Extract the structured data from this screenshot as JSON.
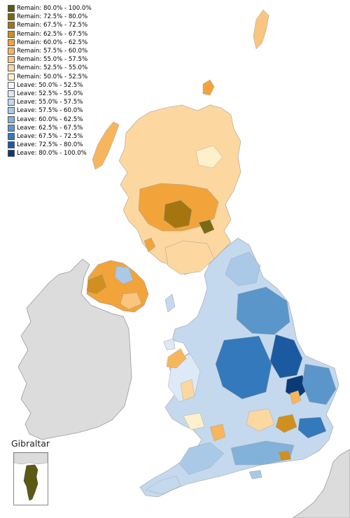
{
  "legend": [
    {
      "label": "Remain: 80.0% - 100.0%",
      "color": "#5a5a14"
    },
    {
      "label": "Remain: 72.5% - 80.0%",
      "color": "#7a6a12"
    },
    {
      "label": "Remain: 67.5% - 72.5%",
      "color": "#a57610"
    },
    {
      "label": "Remain: 62.5% - 67.5%",
      "color": "#d08f1e"
    },
    {
      "label": "Remain: 60.0% - 62.5%",
      "color": "#f2a43a"
    },
    {
      "label": "Remain: 57.5% - 60.0%",
      "color": "#f7b55c"
    },
    {
      "label": "Remain: 55.0% - 57.5%",
      "color": "#fac57e"
    },
    {
      "label": "Remain: 52.5% - 55.0%",
      "color": "#fcd79f"
    },
    {
      "label": "Remain: 50.0% - 52.5%",
      "color": "#fff0cc"
    },
    {
      "label": "Leave: 50.0% - 52.5%",
      "color": "#f4f8fc"
    },
    {
      "label": "Leave: 52.5% - 55.0%",
      "color": "#dde9f6"
    },
    {
      "label": "Leave: 55.0% - 57.5%",
      "color": "#c4d9ee"
    },
    {
      "label": "Leave: 57.5% - 60.0%",
      "color": "#a9c9e6"
    },
    {
      "label": "Leave: 60.0% - 62.5%",
      "color": "#82b1da"
    },
    {
      "label": "Leave: 62.5% - 67.5%",
      "color": "#5b96cb"
    },
    {
      "label": "Leave: 67.5% - 72.5%",
      "color": "#3479bb"
    },
    {
      "label": "Leave: 72.5% - 80.0%",
      "color": "#1b5aa0"
    },
    {
      "label": "Leave: 80.0% - 100.0%",
      "color": "#0c3a78"
    }
  ],
  "inset": {
    "title": "Gibraltar",
    "color": "#5a5a14"
  },
  "colors": {
    "ireland_land": "#dcdcdc",
    "border": "#8a8a8a",
    "sea": "#ffffff"
  }
}
